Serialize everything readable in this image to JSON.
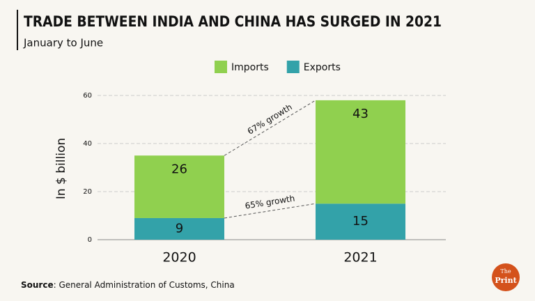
{
  "chart_data": {
    "type": "stacked_bar",
    "title": "TRADE BETWEEN INDIA AND CHINA HAS SURGED IN 2021",
    "subtitle": "January to June",
    "ylabel": "In $ billion",
    "categories": [
      "2020",
      "2021"
    ],
    "series": [
      {
        "name": "Imports",
        "color": "#90d04f",
        "values": [
          26,
          43
        ]
      },
      {
        "name": "Exports",
        "color": "#33a2a9",
        "values": [
          9,
          15
        ]
      }
    ],
    "ylim": [
      0,
      60
    ],
    "yticks": [
      0,
      20,
      40,
      60
    ],
    "grid": true,
    "annotations": [
      "67% growth",
      "65% growth"
    ],
    "source": {
      "label": "Source",
      "text": ": General Administration of Customs, China"
    },
    "logo": {
      "top": "The",
      "bottom": "Print"
    }
  }
}
